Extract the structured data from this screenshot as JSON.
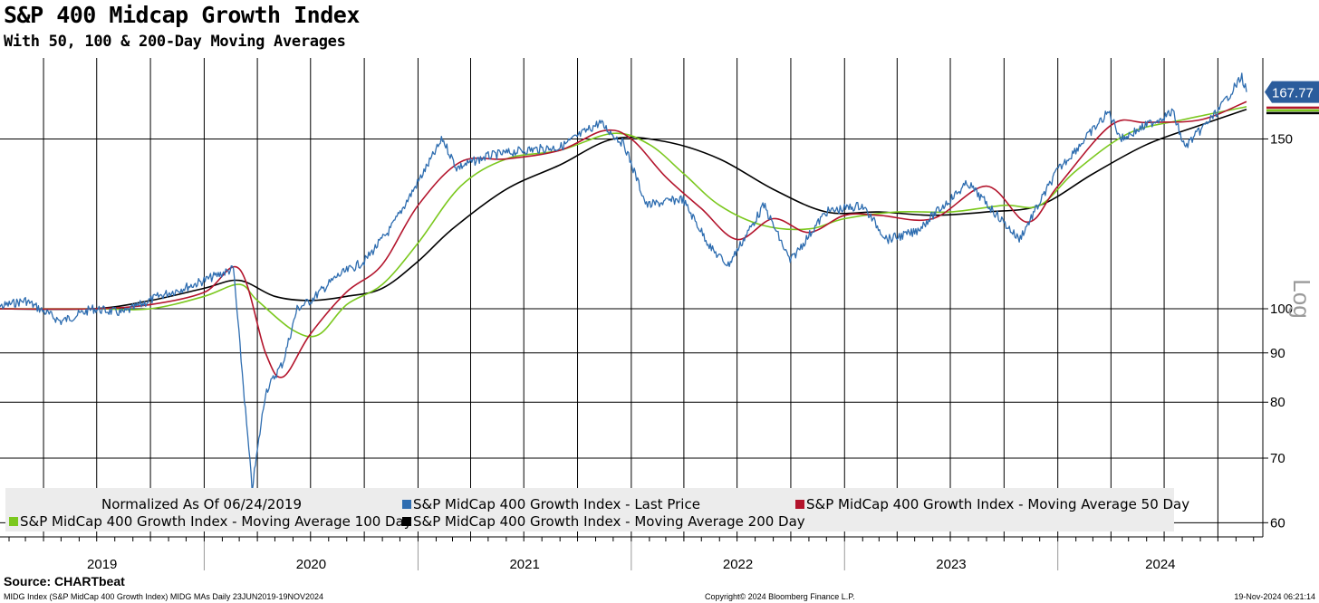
{
  "title": "S&P 400 Midcap Growth Index",
  "subtitle": "With 50, 100 & 200-Day Moving Averages",
  "source": "Source: CHARTbeat",
  "footer": {
    "left": "MIDG Index (S&P MidCap 400 Growth Index) MIDG MAs  Daily 23JUN2019-19NOV2024",
    "center": "Copyright© 2024 Bloomberg Finance L.P.",
    "right": "19-Nov-2024 06:21:14"
  },
  "chart_data": {
    "type": "line",
    "title": "S&P 400 Midcap Growth Index",
    "subtitle": "With 50, 100 & 200-Day Moving Averages",
    "y_scale": "log",
    "y_scale_label": "Log",
    "ylim": [
      58,
      182
    ],
    "y_ticks": [
      60,
      70,
      80,
      90,
      100,
      150
    ],
    "x_range": [
      "2019-01-01",
      "2024-11-19"
    ],
    "x_labels": [
      "2019",
      "2020",
      "2021",
      "2022",
      "2023",
      "2024"
    ],
    "normalized_note": "Normalized As Of 06/24/2019",
    "last_value_label": "167.77",
    "grid": true,
    "legend_position": "bottom",
    "colors": {
      "last_price": "#2e6db0",
      "ma50": "#b3142c",
      "ma100": "#7bc81e",
      "ma200": "#000000",
      "label_bg": "#2b5c9c"
    },
    "series": [
      {
        "name": "S&P MidCap 400 Growth Index - Last Price",
        "key": "last_price",
        "points": [
          [
            "2019-01-01",
            100
          ],
          [
            "2019-03-01",
            102
          ],
          [
            "2019-05-01",
            97
          ],
          [
            "2019-06-24",
            100
          ],
          [
            "2019-08-15",
            99
          ],
          [
            "2019-10-15",
            103
          ],
          [
            "2019-12-15",
            106
          ],
          [
            "2020-02-20",
            110
          ],
          [
            "2020-03-23",
            65
          ],
          [
            "2020-04-15",
            82
          ],
          [
            "2020-05-15",
            88
          ],
          [
            "2020-06-08",
            100
          ],
          [
            "2020-07-01",
            102
          ],
          [
            "2020-08-15",
            108
          ],
          [
            "2020-10-01",
            112
          ],
          [
            "2020-11-15",
            121
          ],
          [
            "2020-12-31",
            135
          ],
          [
            "2021-02-12",
            150
          ],
          [
            "2021-03-08",
            140
          ],
          [
            "2021-05-01",
            144
          ],
          [
            "2021-07-01",
            146
          ],
          [
            "2021-09-01",
            147
          ],
          [
            "2021-11-08",
            156
          ],
          [
            "2021-12-20",
            148
          ],
          [
            "2022-01-27",
            128
          ],
          [
            "2022-03-29",
            130
          ],
          [
            "2022-05-20",
            115
          ],
          [
            "2022-06-16",
            111
          ],
          [
            "2022-08-16",
            128
          ],
          [
            "2022-09-30",
            112
          ],
          [
            "2022-11-30",
            126
          ],
          [
            "2023-01-31",
            128
          ],
          [
            "2023-03-15",
            118
          ],
          [
            "2023-05-01",
            120
          ],
          [
            "2023-07-31",
            135
          ],
          [
            "2023-10-27",
            118
          ],
          [
            "2023-12-31",
            139
          ],
          [
            "2024-03-28",
            160
          ],
          [
            "2024-04-19",
            150
          ],
          [
            "2024-06-01",
            155
          ],
          [
            "2024-07-16",
            160
          ],
          [
            "2024-08-05",
            147
          ],
          [
            "2024-09-30",
            160
          ],
          [
            "2024-11-11",
            174
          ],
          [
            "2024-11-19",
            167.77
          ]
        ]
      },
      {
        "name": "S&P MidCap 400 Growth Index - Moving Average 50 Day",
        "key": "ma50",
        "points": [
          [
            "2019-01-01",
            100
          ],
          [
            "2019-06-24",
            100
          ],
          [
            "2019-10-01",
            101
          ],
          [
            "2020-01-01",
            104
          ],
          [
            "2020-03-01",
            110
          ],
          [
            "2020-04-15",
            90
          ],
          [
            "2020-05-15",
            85
          ],
          [
            "2020-06-30",
            94
          ],
          [
            "2020-08-31",
            104
          ],
          [
            "2020-10-31",
            111
          ],
          [
            "2021-01-01",
            128
          ],
          [
            "2021-03-15",
            142
          ],
          [
            "2021-06-01",
            143
          ],
          [
            "2021-09-01",
            146
          ],
          [
            "2021-11-15",
            153
          ],
          [
            "2022-01-01",
            150
          ],
          [
            "2022-03-01",
            137
          ],
          [
            "2022-05-01",
            127
          ],
          [
            "2022-07-01",
            118
          ],
          [
            "2022-09-01",
            124
          ],
          [
            "2022-11-01",
            120
          ],
          [
            "2023-01-01",
            125
          ],
          [
            "2023-03-01",
            125
          ],
          [
            "2023-06-01",
            124
          ],
          [
            "2023-09-01",
            134
          ],
          [
            "2023-11-10",
            123
          ],
          [
            "2024-01-01",
            134
          ],
          [
            "2024-04-01",
            155
          ],
          [
            "2024-06-01",
            156
          ],
          [
            "2024-09-01",
            157
          ],
          [
            "2024-11-19",
            164
          ]
        ]
      },
      {
        "name": "S&P MidCap 400 Growth Index - Moving Average 100 Day",
        "key": "ma100",
        "points": [
          [
            "2019-01-01",
            100
          ],
          [
            "2019-06-24",
            100
          ],
          [
            "2019-10-01",
            100
          ],
          [
            "2020-01-01",
            103
          ],
          [
            "2020-03-01",
            106
          ],
          [
            "2020-04-01",
            102
          ],
          [
            "2020-06-01",
            95
          ],
          [
            "2020-07-15",
            94
          ],
          [
            "2020-09-01",
            101
          ],
          [
            "2020-11-01",
            106
          ],
          [
            "2021-01-01",
            117
          ],
          [
            "2021-03-15",
            134
          ],
          [
            "2021-06-01",
            143
          ],
          [
            "2021-09-01",
            146
          ],
          [
            "2021-12-01",
            152
          ],
          [
            "2022-02-01",
            148
          ],
          [
            "2022-04-01",
            138
          ],
          [
            "2022-06-01",
            128
          ],
          [
            "2022-08-15",
            122
          ],
          [
            "2022-11-01",
            121
          ],
          [
            "2023-01-01",
            124
          ],
          [
            "2023-04-01",
            126
          ],
          [
            "2023-07-01",
            126
          ],
          [
            "2023-10-01",
            128
          ],
          [
            "2023-12-01",
            128
          ],
          [
            "2024-02-01",
            139
          ],
          [
            "2024-05-01",
            152
          ],
          [
            "2024-08-01",
            157
          ],
          [
            "2024-11-19",
            162
          ]
        ]
      },
      {
        "name": "S&P MidCap 400 Growth Index - Moving Average 200 Day",
        "key": "ma200",
        "points": [
          [
            "2019-01-01",
            100
          ],
          [
            "2019-06-24",
            100
          ],
          [
            "2019-10-01",
            102
          ],
          [
            "2020-01-01",
            105
          ],
          [
            "2020-03-01",
            107
          ],
          [
            "2020-05-01",
            103
          ],
          [
            "2020-06-30",
            102
          ],
          [
            "2020-09-01",
            103
          ],
          [
            "2020-11-01",
            105
          ],
          [
            "2021-01-01",
            112
          ],
          [
            "2021-03-01",
            121
          ],
          [
            "2021-06-01",
            133
          ],
          [
            "2021-09-01",
            141
          ],
          [
            "2021-12-01",
            150
          ],
          [
            "2022-03-01",
            149
          ],
          [
            "2022-06-01",
            143
          ],
          [
            "2022-09-01",
            133
          ],
          [
            "2022-12-01",
            126
          ],
          [
            "2023-03-01",
            126
          ],
          [
            "2023-06-01",
            125
          ],
          [
            "2023-09-01",
            126
          ],
          [
            "2023-12-01",
            128
          ],
          [
            "2024-03-01",
            138
          ],
          [
            "2024-06-01",
            148
          ],
          [
            "2024-09-01",
            155
          ],
          [
            "2024-11-19",
            161
          ]
        ]
      }
    ]
  }
}
